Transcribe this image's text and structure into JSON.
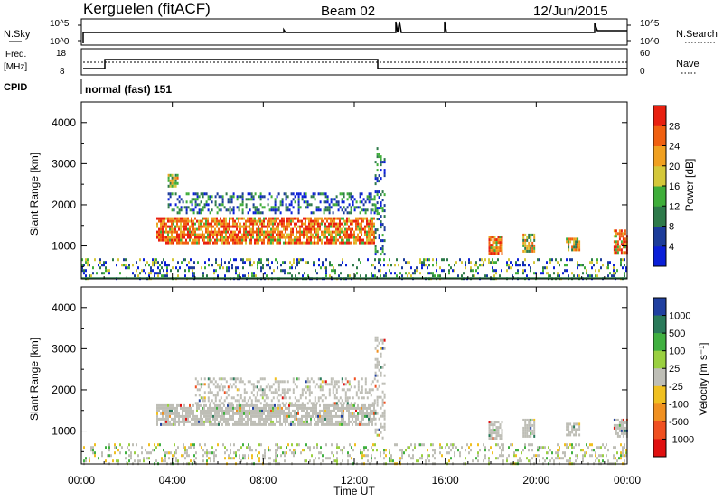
{
  "header": {
    "station": "Kerguelen (fitACF)",
    "beam": "Beam 02",
    "date": "12/Jun/2015"
  },
  "strips": {
    "nsky_label": "N.Sky",
    "nsky_ticks": [
      "10^5",
      "10^0"
    ],
    "nsearch_label": "N.Search",
    "nsearch_ticks": [
      "10^5",
      "10^0"
    ],
    "freq_label": "Freq.",
    "freq_unit": "[MHz]",
    "freq_ticks": [
      "18",
      "8"
    ],
    "nave_label": "Nave",
    "nave_ticks": [
      "60",
      "0"
    ],
    "cpid_label": "CPID",
    "cpid_text": "normal (fast) 151"
  },
  "colors": {
    "power_scale": [
      "#0a1fd8",
      "#1c3c9a",
      "#2e7a4a",
      "#3fae3a",
      "#d4c83a",
      "#f0a020",
      "#f06010",
      "#e82010"
    ],
    "velocity_scale": [
      "#2040a0",
      "#2a7a5a",
      "#40b040",
      "#9ad040",
      "#bebeb6",
      "#f0c020",
      "#f09020",
      "#f05020",
      "#e01010"
    ],
    "gray_scatter": "#bebeb6"
  },
  "chart_data": [
    {
      "type": "heatmap",
      "name": "power_panel",
      "ylabel": "Slant Range [km]",
      "ylim": [
        200,
        4500
      ],
      "yticks": [
        "1000",
        "2000",
        "3000",
        "4000"
      ],
      "xlabel": "",
      "xticks": [
        "00:00",
        "04:00",
        "08:00",
        "12:00",
        "16:00",
        "20:00",
        "00:00"
      ],
      "xlim_hours": [
        0,
        24
      ],
      "colorbar_label": "Power [dB]",
      "colorbar_ticks": [
        "28",
        "24",
        "20",
        "16",
        "12",
        "8",
        "4"
      ],
      "colorbar_range": [
        0,
        32
      ],
      "regions": [
        {
          "t0": 3.3,
          "t1": 12.9,
          "r0": 1050,
          "r1": 1700,
          "level": "strong"
        },
        {
          "t0": 3.8,
          "t1": 12.9,
          "r0": 1800,
          "r1": 2300,
          "level": "weak"
        },
        {
          "t0": 3.8,
          "t1": 4.2,
          "r0": 2450,
          "r1": 2750,
          "level": "medium"
        },
        {
          "t0": 12.9,
          "t1": 13.3,
          "r0": 800,
          "r1": 3400,
          "level": "weak"
        },
        {
          "t0": 17.9,
          "t1": 18.5,
          "r0": 850,
          "r1": 1250,
          "level": "strong"
        },
        {
          "t0": 19.4,
          "t1": 19.9,
          "r0": 900,
          "r1": 1300,
          "level": "medium"
        },
        {
          "t0": 21.3,
          "t1": 21.9,
          "r0": 900,
          "r1": 1200,
          "level": "medium"
        },
        {
          "t0": 23.4,
          "t1": 24.0,
          "r0": 850,
          "r1": 1400,
          "level": "strong"
        },
        {
          "t0": 0.0,
          "t1": 24.0,
          "r0": 200,
          "r1": 700,
          "level": "ground"
        }
      ]
    },
    {
      "type": "heatmap",
      "name": "velocity_panel",
      "ylabel": "Slant Range [km]",
      "ylim": [
        200,
        4500
      ],
      "yticks": [
        "1000",
        "2000",
        "3000",
        "4000"
      ],
      "xlabel": "Time UT",
      "xticks": [
        "00:00",
        "04:00",
        "08:00",
        "12:00",
        "16:00",
        "20:00",
        "00:00"
      ],
      "xlim_hours": [
        0,
        24
      ],
      "colorbar_label": "Velocity [m s⁻¹]",
      "colorbar_ticks": [
        "1000",
        "500",
        "100",
        "25",
        "-25",
        "-100",
        "-500",
        "-1000"
      ],
      "regions": [
        {
          "t0": 3.3,
          "t1": 12.9,
          "r0": 1150,
          "r1": 1650,
          "level": "gray"
        },
        {
          "t0": 5.0,
          "t1": 12.9,
          "r0": 1700,
          "r1": 2300,
          "level": "gray_sparse"
        },
        {
          "t0": 12.9,
          "t1": 13.3,
          "r0": 800,
          "r1": 3300,
          "level": "gray_sparse"
        },
        {
          "t0": 17.9,
          "t1": 18.5,
          "r0": 850,
          "r1": 1250,
          "level": "gray"
        },
        {
          "t0": 19.4,
          "t1": 19.9,
          "r0": 900,
          "r1": 1300,
          "level": "gray"
        },
        {
          "t0": 21.3,
          "t1": 21.9,
          "r0": 900,
          "r1": 1200,
          "level": "gray"
        },
        {
          "t0": 23.4,
          "t1": 24.0,
          "r0": 850,
          "r1": 1300,
          "level": "gray"
        },
        {
          "t0": 0.0,
          "t1": 24.0,
          "r0": 200,
          "r1": 700,
          "level": "ground_mixed"
        }
      ]
    }
  ]
}
